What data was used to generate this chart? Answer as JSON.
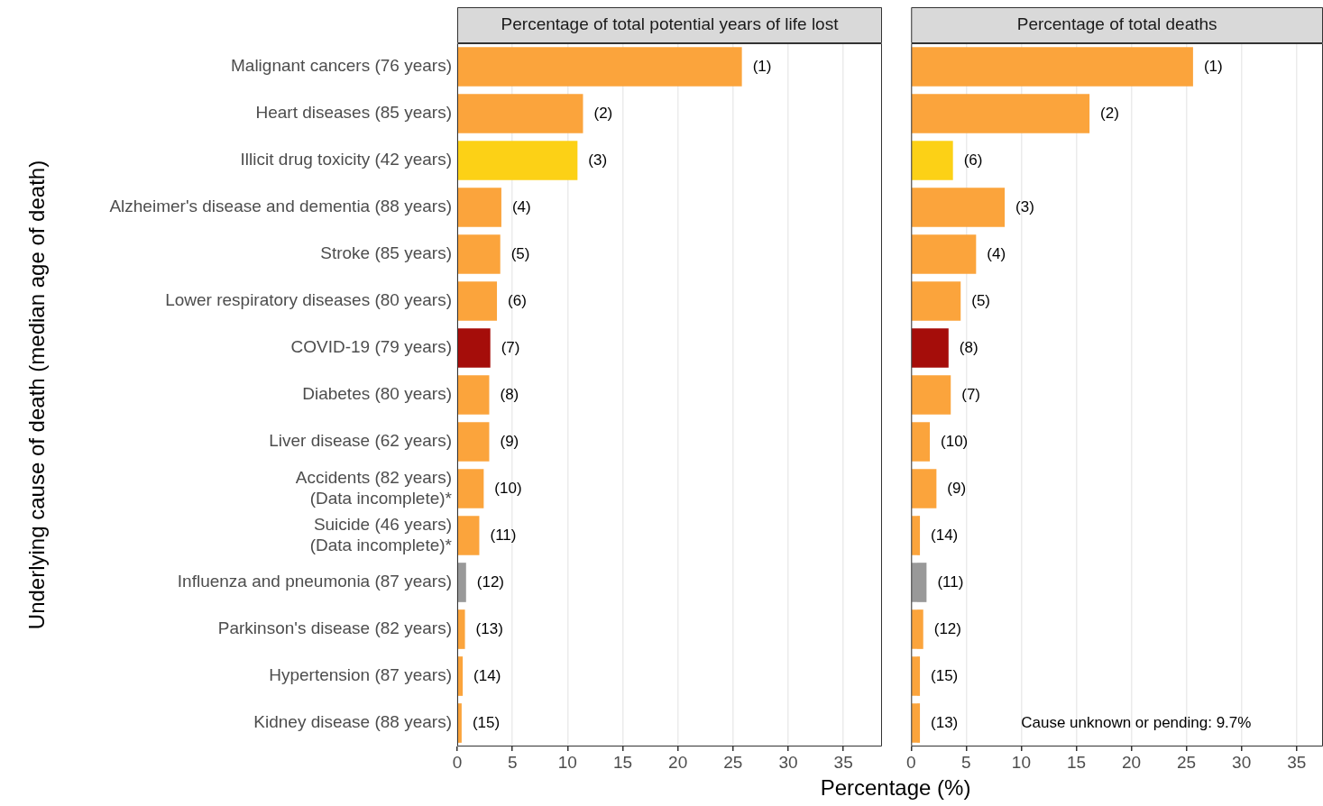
{
  "chart_data": [
    {
      "type": "bar",
      "orientation": "horizontal",
      "title": "Percentage of total potential years of life lost",
      "xlabel": "Percentage (%)",
      "ylabel": "Underlying cause of death (median age of death)",
      "categories": [
        "Malignant cancers (76 years)",
        "Heart diseases (85 years)",
        "Illicit drug toxicity (42 years)",
        "Alzheimer's disease and dementia (88 years)",
        "Stroke (85 years)",
        "Lower respiratory diseases (80 years)",
        "COVID-19 (79 years)",
        "Diabetes (80 years)",
        "Liver disease (62 years)",
        "Accidents (82 years)\n(Data incomplete)*",
        "Suicide (46 years)\n(Data incomplete)*",
        "Influenza and pneumonia (87 years)",
        "Parkinson's disease (82 years)",
        "Hypertension (87 years)",
        "Kidney disease (88 years)"
      ],
      "values": [
        25.8,
        11.4,
        10.9,
        4.0,
        3.9,
        3.6,
        3.0,
        2.9,
        2.9,
        2.4,
        2.0,
        0.8,
        0.7,
        0.5,
        0.4
      ],
      "colors": [
        "#fba43c",
        "#fba43c",
        "#fcd116",
        "#fba43c",
        "#fba43c",
        "#fba43c",
        "#a50d0a",
        "#fba43c",
        "#fba43c",
        "#fba43c",
        "#fba43c",
        "#999999",
        "#fba43c",
        "#fba43c",
        "#fba43c"
      ],
      "annotations": [
        {
          "text": "(1)",
          "x": 25.8,
          "y": "Malignant cancers (76 years)"
        },
        {
          "text": "(2)",
          "x": 11.4,
          "y": "Heart diseases (85 years)"
        },
        {
          "text": "(3)",
          "x": 10.9,
          "y": "Illicit drug toxicity (42 years)"
        },
        {
          "text": "(4)",
          "x": 4.0,
          "y": "Alzheimer's disease and dementia (88 years)"
        },
        {
          "text": "(5)",
          "x": 3.9,
          "y": "Stroke (85 years)"
        },
        {
          "text": "(6)",
          "x": 3.6,
          "y": "Lower respiratory diseases (80 years)"
        },
        {
          "text": "(7)",
          "x": 3.0,
          "y": "COVID-19 (79 years)"
        },
        {
          "text": "(8)",
          "x": 2.9,
          "y": "Diabetes (80 years)"
        },
        {
          "text": "(9)",
          "x": 2.9,
          "y": "Liver disease (62 years)"
        },
        {
          "text": "(10)",
          "x": 2.4,
          "y": "Accidents (82 years)\n(Data incomplete)*"
        },
        {
          "text": "(11)",
          "x": 2.0,
          "y": "Suicide (46 years)\n(Data incomplete)*"
        },
        {
          "text": "(12)",
          "x": 0.8,
          "y": "Influenza and pneumonia (87 years)"
        },
        {
          "text": "(13)",
          "x": 0.7,
          "y": "Parkinson's disease (82 years)"
        },
        {
          "text": "(14)",
          "x": 0.5,
          "y": "Hypertension (87 years)"
        },
        {
          "text": "(15)",
          "x": 0.4,
          "y": "Kidney disease (88 years)"
        }
      ],
      "xlim": [
        0,
        38.5
      ],
      "xticks": [
        0,
        5,
        10,
        15,
        20,
        25,
        30,
        35
      ],
      "grid": "x"
    },
    {
      "type": "bar",
      "orientation": "horizontal",
      "title": "Percentage of total deaths",
      "tick_labels": "x",
      "categories": [
        "Malignant cancers (76 years)",
        "Heart diseases (85 years)",
        "Illicit drug toxicity (42 years)",
        "Alzheimer's disease and dementia (88 years)",
        "Stroke (85 years)",
        "Lower respiratory diseases (80 years)",
        "COVID-19 (79 years)",
        "Diabetes (80 years)",
        "Liver disease (62 years)",
        "Accidents (82 years)\n(Data incomplete)*",
        "Suicide (46 years)\n(Data incomplete)*",
        "Influenza and pneumonia (87 years)",
        "Parkinson's disease (82 years)",
        "Hypertension (87 years)",
        "Kidney disease (88 years)"
      ],
      "values": [
        25.6,
        16.2,
        3.8,
        8.5,
        5.9,
        4.5,
        3.4,
        3.6,
        1.7,
        2.3,
        0.8,
        1.4,
        1.1,
        0.8,
        0.8
      ],
      "colors": [
        "#fba43c",
        "#fba43c",
        "#fcd116",
        "#fba43c",
        "#fba43c",
        "#fba43c",
        "#a50d0a",
        "#fba43c",
        "#fba43c",
        "#fba43c",
        "#fba43c",
        "#999999",
        "#fba43c",
        "#fba43c",
        "#fba43c"
      ],
      "annotations": [
        {
          "text": "(1)",
          "x": 25.6,
          "y": "Malignant cancers (76 years)"
        },
        {
          "text": "(2)",
          "x": 16.2,
          "y": "Heart diseases (85 years)"
        },
        {
          "text": "(6)",
          "x": 3.8,
          "y": "Illicit drug toxicity (42 years)"
        },
        {
          "text": "(3)",
          "x": 8.5,
          "y": "Alzheimer's disease and dementia (88 years)"
        },
        {
          "text": "(4)",
          "x": 5.9,
          "y": "Stroke (85 years)"
        },
        {
          "text": "(5)",
          "x": 4.5,
          "y": "Lower respiratory diseases (80 years)"
        },
        {
          "text": "(8)",
          "x": 3.4,
          "y": "COVID-19 (79 years)"
        },
        {
          "text": "(7)",
          "x": 3.6,
          "y": "Diabetes (80 years)"
        },
        {
          "text": "(10)",
          "x": 1.7,
          "y": "Liver disease (62 years)"
        },
        {
          "text": "(9)",
          "x": 2.3,
          "y": "Accidents (82 years)\n(Data incomplete)*"
        },
        {
          "text": "(14)",
          "x": 0.8,
          "y": "Suicide (46 years)\n(Data incomplete)*"
        },
        {
          "text": "(11)",
          "x": 1.4,
          "y": "Influenza and pneumonia (87 years)"
        },
        {
          "text": "(12)",
          "x": 1.1,
          "y": "Parkinson's disease (82 years)"
        },
        {
          "text": "(15)",
          "x": 0.8,
          "y": "Hypertension (87 years)"
        },
        {
          "text": "(13)",
          "x": 0.8,
          "y": "Kidney disease (88 years)"
        },
        "Cause unknown or pending: 9.7%"
      ],
      "xlim": [
        0,
        37.4
      ],
      "xticks": [
        0,
        5,
        10,
        15,
        20,
        25,
        30,
        35
      ],
      "grid": "x"
    }
  ]
}
